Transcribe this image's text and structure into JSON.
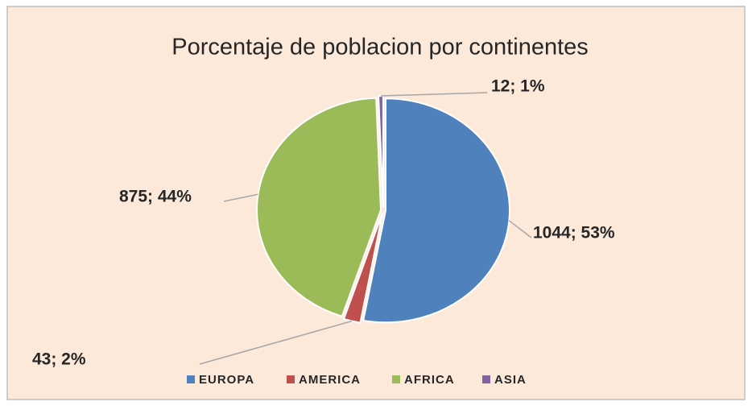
{
  "chart_data": {
    "type": "pie",
    "title": "Porcentaje de poblacion por continentes",
    "categories": [
      "EUROPA",
      "AMERICA",
      "AFRICA",
      "ASIA"
    ],
    "values": [
      1044,
      43,
      875,
      12
    ],
    "value_labels": [
      "1044; 53%",
      "43; 2%",
      "875; 44%",
      "12; 1%"
    ],
    "colors": [
      "#4f81bd",
      "#c0504d",
      "#9bbb59",
      "#8064a2"
    ],
    "legend": "bottom"
  }
}
